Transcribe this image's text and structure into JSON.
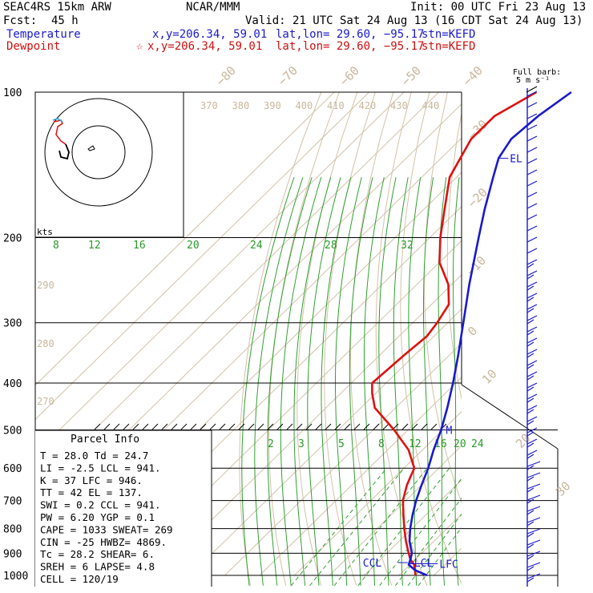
{
  "header": {
    "model": "SEAC4RS 15km ARW",
    "org": "NCAR/MMM",
    "init": "Init: 00 UTC Fri 23 Aug 13",
    "fcst_label": "Fcst:",
    "fcst_value": "45 h",
    "valid": "Valid: 21 UTC Sat 24 Aug 13 (16 CDT Sat 24 Aug 13)",
    "temp_label": "Temperature",
    "temp_xy": "x,y=206.34, 59.01",
    "temp_latlon": "lat,lon= 29.60, −95.17",
    "temp_stn": "stn=KEFD",
    "dew_label": "Dewpoint",
    "dew_xy": "x,y=206.34, 59.01",
    "dew_latlon": "lat,lon= 29.60, −95.17",
    "dew_stn": "stn=KEFD"
  },
  "barb_label": "Full barb:",
  "barb_unit": "5 m s⁻¹",
  "hodo_label": "kts",
  "colors": {
    "temperature": "#1a1acc",
    "dewpoint": "#e01010",
    "isotherm": "#d2c2a8",
    "mixing_ratio": "#30a030",
    "moist_adiabat": "#30a030",
    "grid": "#000000"
  },
  "chart_data": {
    "type": "skew-t",
    "y_scale": "log-pressure",
    "pressure_levels_hPa": [
      100,
      200,
      300,
      400,
      500,
      600,
      700,
      800,
      900,
      1000
    ],
    "isotherm_labels": [
      "−80",
      "−70",
      "−60",
      "−50",
      "−40",
      "−30",
      "−20",
      "−10",
      "0",
      "10",
      "20",
      "30",
      "40"
    ],
    "theta_labels_upper": [
      "370",
      "380",
      "390",
      "400",
      "410",
      "420",
      "430",
      "440"
    ],
    "theta_labels_left": [
      "290",
      "280",
      "270"
    ],
    "mixing_ratio_labels_upper": [
      "8",
      "12",
      "16",
      "20",
      "24",
      "28",
      "32"
    ],
    "mixing_ratio_labels_lower": [
      "2",
      "3",
      "5",
      "8",
      "12",
      "16",
      "20",
      "24"
    ],
    "temperature_profile": [
      {
        "p": 1000,
        "t": 28.0
      },
      {
        "p": 975,
        "t": 23.0
      },
      {
        "p": 950,
        "t": 19.6
      },
      {
        "p": 925,
        "t": 18.5
      },
      {
        "p": 900,
        "t": 17.2
      },
      {
        "p": 850,
        "t": 13.0
      },
      {
        "p": 800,
        "t": 9.5
      },
      {
        "p": 750,
        "t": 6.2
      },
      {
        "p": 700,
        "t": 3.0
      },
      {
        "p": 650,
        "t": 0.0
      },
      {
        "p": 600,
        "t": -3.0
      },
      {
        "p": 550,
        "t": -6.8
      },
      {
        "p": 500,
        "t": -10.5
      },
      {
        "p": 450,
        "t": -15.2
      },
      {
        "p": 400,
        "t": -20.8
      },
      {
        "p": 350,
        "t": -27.5
      },
      {
        "p": 300,
        "t": -35.5
      },
      {
        "p": 250,
        "t": -45.0
      },
      {
        "p": 200,
        "t": -56.0
      },
      {
        "p": 175,
        "t": -62.5
      },
      {
        "p": 150,
        "t": -69.5
      },
      {
        "p": 137,
        "t": -73.5
      },
      {
        "p": 125,
        "t": -75.5
      },
      {
        "p": 112,
        "t": -74.5
      },
      {
        "p": 100,
        "t": -72.0
      }
    ],
    "dewpoint_profile": [
      {
        "p": 1000,
        "t": 24.7
      },
      {
        "p": 975,
        "t": 23.0
      },
      {
        "p": 950,
        "t": 21.2
      },
      {
        "p": 925,
        "t": 18.4
      },
      {
        "p": 900,
        "t": 16.3
      },
      {
        "p": 850,
        "t": 12.0
      },
      {
        "p": 800,
        "t": 7.8
      },
      {
        "p": 750,
        "t": 3.6
      },
      {
        "p": 700,
        "t": -0.8
      },
      {
        "p": 650,
        "t": -4.2
      },
      {
        "p": 600,
        "t": -7.0
      },
      {
        "p": 550,
        "t": -14.0
      },
      {
        "p": 500,
        "t": -24.0
      },
      {
        "p": 450,
        "t": -36.0
      },
      {
        "p": 420,
        "t": -41.0
      },
      {
        "p": 400,
        "t": -44.0
      },
      {
        "p": 350,
        "t": -43.0
      },
      {
        "p": 320,
        "t": -42.0
      },
      {
        "p": 300,
        "t": -43.0
      },
      {
        "p": 275,
        "t": -45.0
      },
      {
        "p": 250,
        "t": -51.0
      },
      {
        "p": 225,
        "t": -60.0
      },
      {
        "p": 200,
        "t": -67.0
      },
      {
        "p": 175,
        "t": -74.0
      },
      {
        "p": 150,
        "t": -82.0
      },
      {
        "p": 125,
        "t": -87.0
      },
      {
        "p": 112,
        "t": -87.0
      },
      {
        "p": 100,
        "t": -82.0
      }
    ],
    "level_labels": [
      {
        "text": "EL",
        "p": 137
      },
      {
        "text": "M",
        "p": 500
      },
      {
        "text": "CCL",
        "p": 941
      },
      {
        "text": "LCL",
        "p": 941
      },
      {
        "text": "LFC",
        "p": 946
      }
    ],
    "hodograph": {
      "rings_kts": [
        10,
        20
      ],
      "label": "kts"
    }
  },
  "parcel_info": {
    "title": "Parcel Info",
    "rows": [
      [
        "T  =    28.0 Td  =  24.7"
      ],
      [
        "LI =    -2.5 LCL =  941."
      ],
      [
        "K  =      37 LFC =  946."
      ],
      [
        "TT =      42 EL  =  137."
      ],
      [
        "SWI =    0.2 CCL =  941."
      ],
      [
        "PW =    6.20 YGP =   0.1"
      ],
      [
        "CAPE =  1033 SWEAT=  269"
      ],
      [
        "CIN =    -25 HWBZ= 4869."
      ],
      [
        "Tc =    28.2 SHEAR=   6."
      ],
      [
        "SREH =     6 LAPSE=  4.8"
      ],
      [
        "CELL = 120/19"
      ]
    ]
  }
}
